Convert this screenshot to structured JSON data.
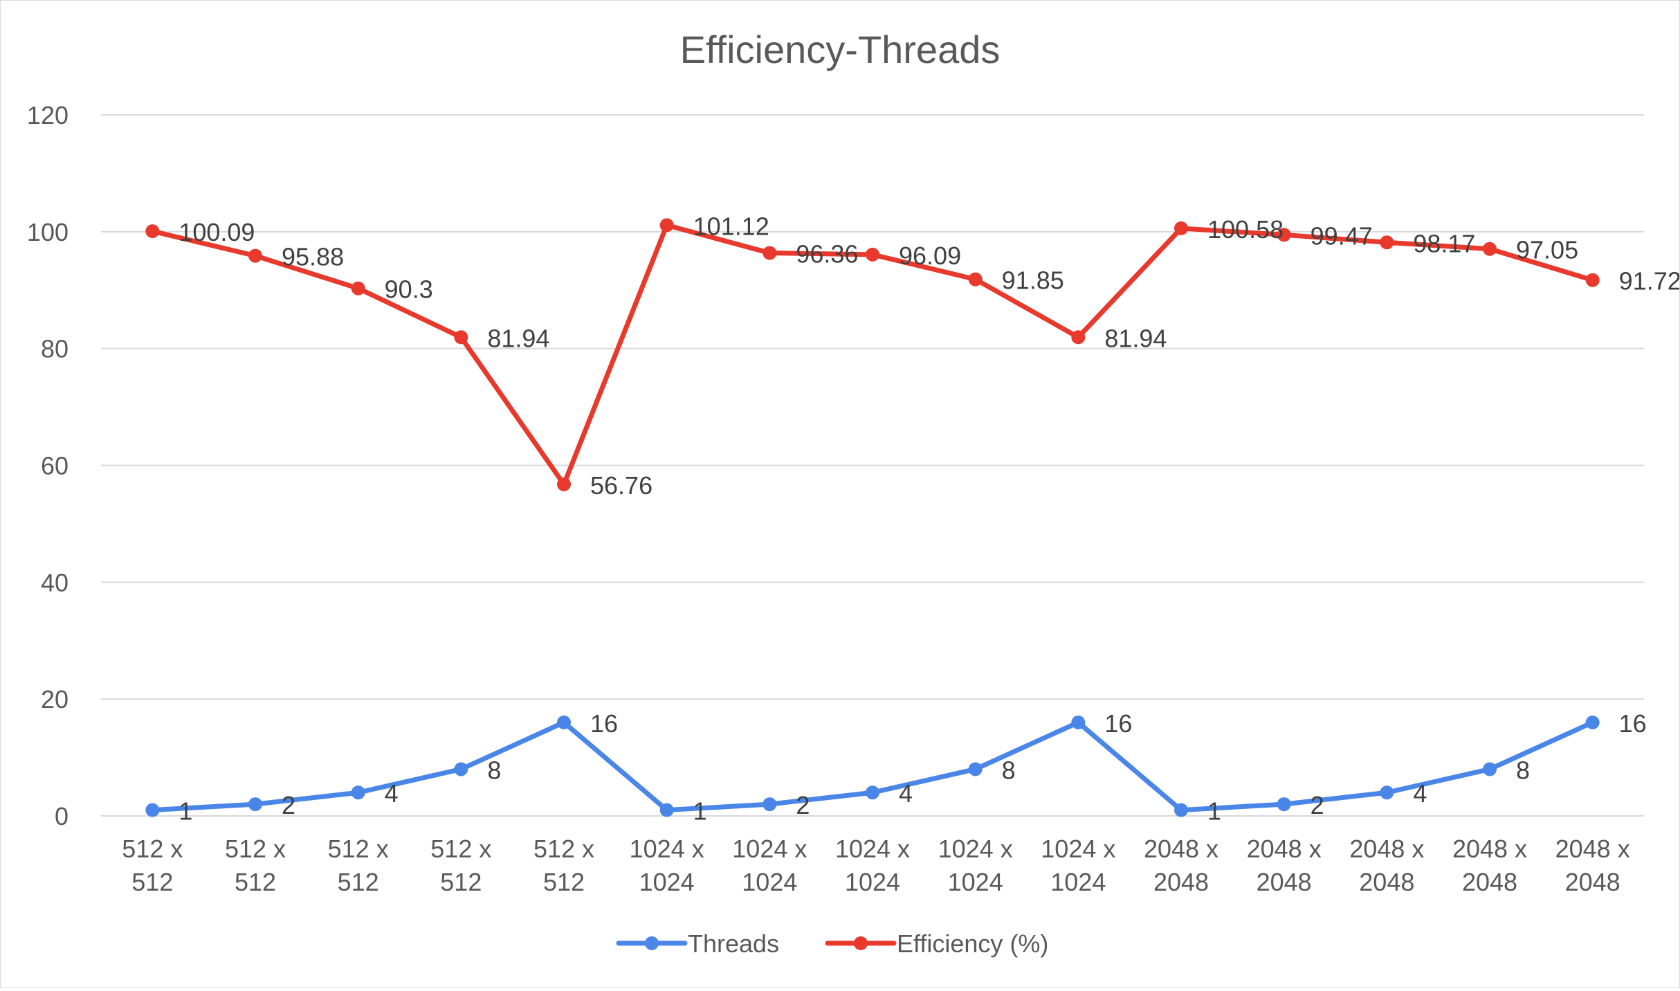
{
  "chart_data": {
    "type": "line",
    "title": "Efficiency-Threads",
    "categories": [
      [
        "512 x",
        "512"
      ],
      [
        "512 x",
        "512"
      ],
      [
        "512 x",
        "512"
      ],
      [
        "512 x",
        "512"
      ],
      [
        "512 x",
        "512"
      ],
      [
        "1024 x",
        "1024"
      ],
      [
        "1024 x",
        "1024"
      ],
      [
        "1024 x",
        "1024"
      ],
      [
        "1024 x",
        "1024"
      ],
      [
        "1024 x",
        "1024"
      ],
      [
        "2048 x",
        "2048"
      ],
      [
        "2048 x",
        "2048"
      ],
      [
        "2048 x",
        "2048"
      ],
      [
        "2048 x",
        "2048"
      ],
      [
        "2048 x",
        "2048"
      ]
    ],
    "ylim": [
      0,
      120
    ],
    "yticks": [
      0,
      20,
      40,
      60,
      80,
      100,
      120
    ],
    "grid": true,
    "legend": "bottom",
    "series": [
      {
        "name": "Threads",
        "color": "#4a86e8",
        "values": [
          1,
          2,
          4,
          8,
          16,
          1,
          2,
          4,
          8,
          16,
          1,
          2,
          4,
          8,
          16
        ]
      },
      {
        "name": "Efficiency (%)",
        "color": "#e8392c",
        "values": [
          100.09,
          95.88,
          90.3,
          81.94,
          56.76,
          101.12,
          96.36,
          96.09,
          91.85,
          81.94,
          100.58,
          99.47,
          98.17,
          97.05,
          91.72
        ]
      }
    ]
  }
}
